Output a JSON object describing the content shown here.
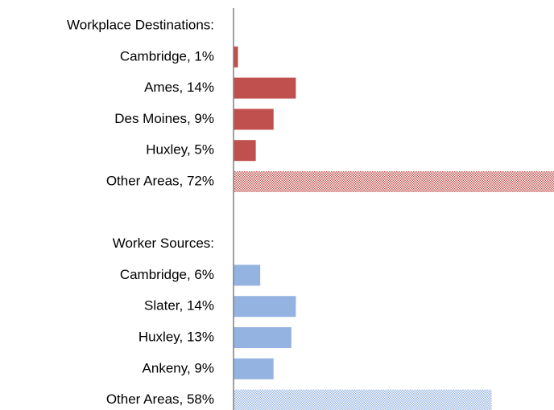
{
  "chart_data": {
    "type": "hbar",
    "categories": [
      "Workplace Destinations:",
      "Cambridge, 1%",
      "Ames, 14%",
      "Des Moines, 9%",
      "Huxley, 5%",
      "Other Areas, 72%",
      null,
      "Worker Sources:",
      "Cambridge, 6%",
      "Slater, 14%",
      "Huxley, 13%",
      "Ankeny, 9%",
      "Other Areas, 58%"
    ],
    "series": [
      {
        "color": "#c0504d",
        "values": [
          null,
          1,
          14,
          9,
          5,
          72,
          null,
          null,
          null,
          null,
          null,
          null,
          null
        ]
      },
      {
        "color": "#95b3e0",
        "values": [
          null,
          null,
          null,
          null,
          null,
          null,
          null,
          null,
          6,
          14,
          13,
          9,
          58
        ]
      }
    ],
    "hatched": [
      false,
      false,
      false,
      false,
      false,
      true,
      false,
      false,
      false,
      false,
      false,
      false,
      true
    ],
    "xlim": [
      0,
      72
    ]
  }
}
